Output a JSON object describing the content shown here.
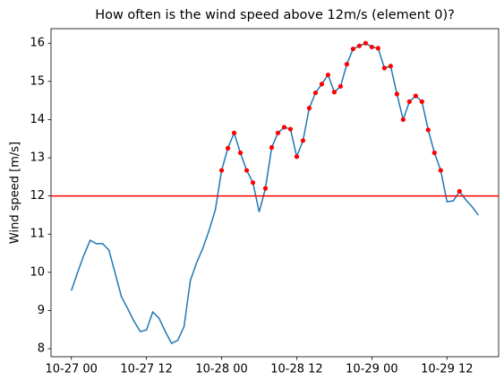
{
  "chart_data": {
    "type": "line",
    "title": "How often is the wind speed above 12m/s (element 0)?",
    "y_label": "Wind speed [m/s]",
    "x": [
      "10-27 00",
      "10-27 01",
      "10-27 02",
      "10-27 03",
      "10-27 04",
      "10-27 05",
      "10-27 06",
      "10-27 07",
      "10-27 08",
      "10-27 09",
      "10-27 10",
      "10-27 11",
      "10-27 12",
      "10-27 13",
      "10-27 14",
      "10-27 15",
      "10-27 16",
      "10-27 17",
      "10-27 18",
      "10-27 19",
      "10-27 20",
      "10-27 21",
      "10-27 22",
      "10-27 23",
      "10-28 00",
      "10-28 01",
      "10-28 02",
      "10-28 03",
      "10-28 04",
      "10-28 05",
      "10-28 06",
      "10-28 07",
      "10-28 08",
      "10-28 09",
      "10-28 10",
      "10-28 11",
      "10-28 12",
      "10-28 13",
      "10-28 14",
      "10-28 15",
      "10-28 16",
      "10-28 17",
      "10-28 18",
      "10-28 19",
      "10-28 20",
      "10-28 21",
      "10-28 22",
      "10-28 23",
      "10-29 00",
      "10-29 01",
      "10-29 02",
      "10-29 03",
      "10-29 04",
      "10-29 05",
      "10-29 06",
      "10-29 07",
      "10-29 08",
      "10-29 09",
      "10-29 10",
      "10-29 11",
      "10-29 12",
      "10-29 13",
      "10-29 14",
      "10-29 15",
      "10-29 16",
      "10-29 17"
    ],
    "series": [
      {
        "color": "#1f77b4",
        "values": [
          9.52,
          10.0,
          10.45,
          10.84,
          10.75,
          10.75,
          10.58,
          9.97,
          9.36,
          9.05,
          8.72,
          8.45,
          8.49,
          8.96,
          8.8,
          8.45,
          8.14,
          8.22,
          8.58,
          9.78,
          10.25,
          10.63,
          11.1,
          11.64,
          12.67,
          13.25,
          13.65,
          13.13,
          12.67,
          12.35,
          11.58,
          12.2,
          13.27,
          13.65,
          13.8,
          13.75,
          13.03,
          13.45,
          14.3,
          14.7,
          14.93,
          15.17,
          14.72,
          14.87,
          15.45,
          15.85,
          15.93,
          16.0,
          15.9,
          15.87,
          15.35,
          15.4,
          14.67,
          14.0,
          14.47,
          14.62,
          14.47,
          13.73,
          13.13,
          12.67,
          11.85,
          11.87,
          12.12,
          11.9,
          11.72,
          11.5
        ]
      }
    ],
    "threshold": 12,
    "threshold_color": "#ff0000",
    "ylim": [
      7.79,
      16.38
    ],
    "yticks": [
      8,
      9,
      10,
      11,
      12,
      13,
      14,
      15,
      16
    ],
    "xticks": [
      "10-27 00",
      "10-27 12",
      "10-28 00",
      "10-28 12",
      "10-29 00",
      "10-29 12"
    ]
  }
}
